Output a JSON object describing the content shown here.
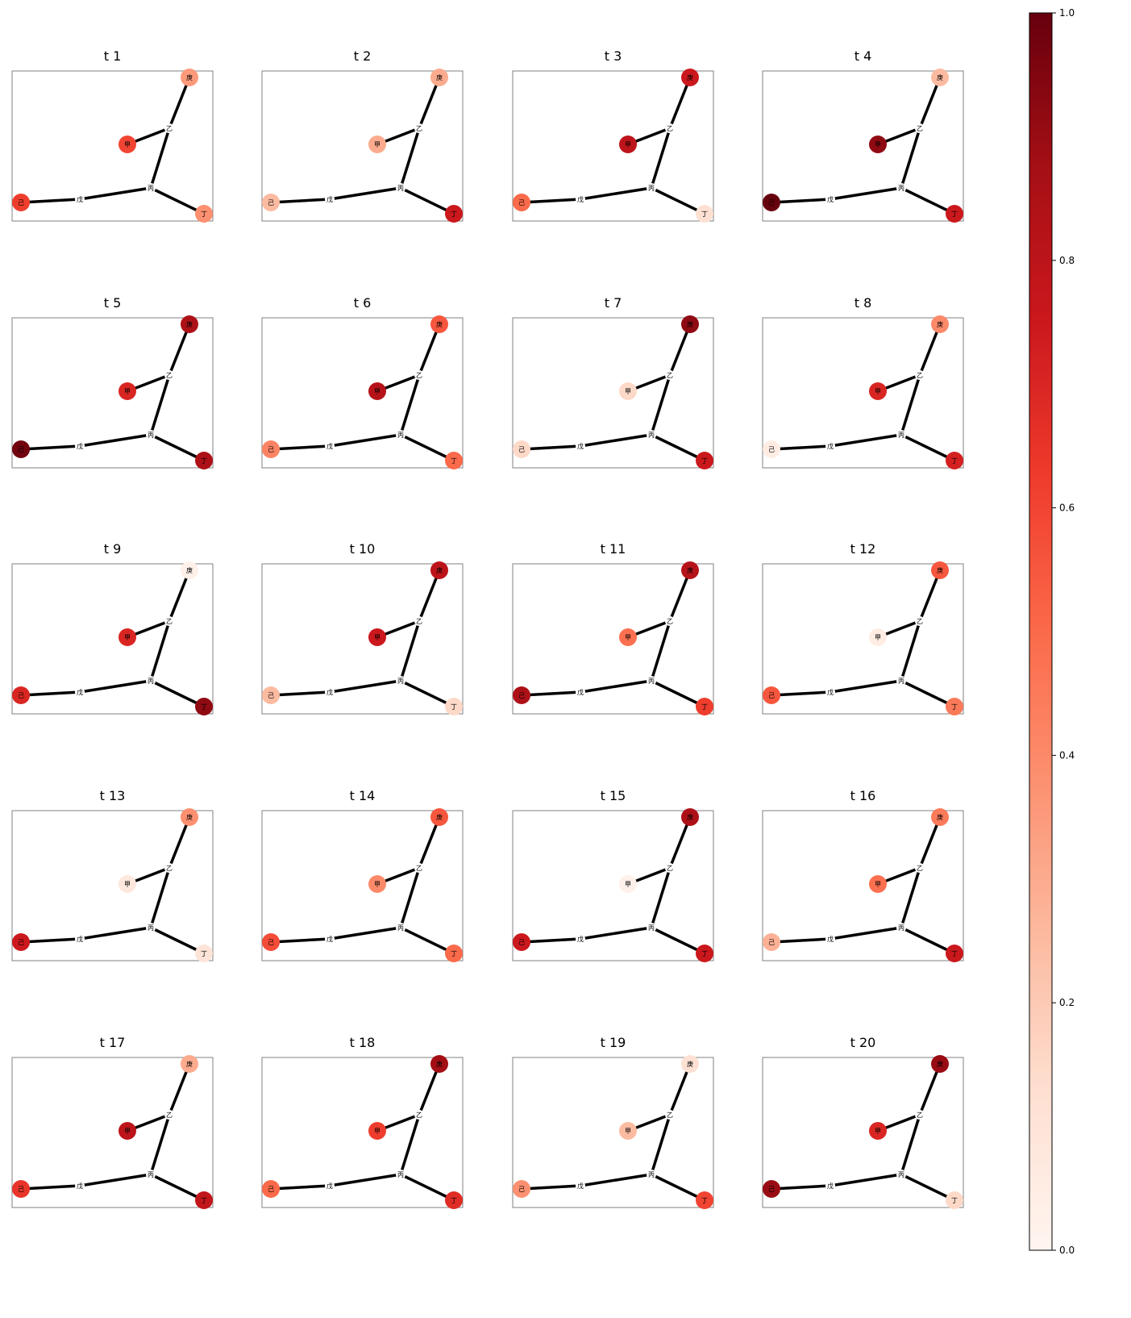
{
  "panel_titles": [
    "t 1",
    "t 2",
    "t 3",
    "t 4",
    "t 5",
    "t 6",
    "t 7",
    "t 8",
    "t 9",
    "t 10",
    "t 11",
    "t 12",
    "t 13",
    "t 14",
    "t 15",
    "t 16",
    "t 17",
    "t 18",
    "t 19",
    "t 20"
  ],
  "node_labels": {
    "jia": "甲",
    "yi": "乙",
    "bing": "丙",
    "ding": "丁",
    "wu": "戊",
    "ji": "己",
    "geng": "庚"
  },
  "edges": [
    [
      "jia",
      "yi"
    ],
    [
      "yi",
      "geng"
    ],
    [
      "yi",
      "bing"
    ],
    [
      "bing",
      "ding"
    ],
    [
      "bing",
      "wu"
    ],
    [
      "wu",
      "ji"
    ]
  ],
  "unweighted_nodes": [
    "yi",
    "bing",
    "wu"
  ],
  "weighted_nodes": [
    "jia",
    "ji",
    "ding",
    "geng"
  ],
  "node_values": [
    {
      "jia": 0.6,
      "ji": 0.62,
      "ding": 0.38,
      "geng": 0.35
    },
    {
      "jia": 0.3,
      "ji": 0.25,
      "ding": 0.75,
      "geng": 0.3
    },
    {
      "jia": 0.8,
      "ji": 0.5,
      "ding": 0.12,
      "geng": 0.75
    },
    {
      "jia": 0.92,
      "ji": 1.0,
      "ding": 0.75,
      "geng": 0.25
    },
    {
      "jia": 0.7,
      "ji": 0.98,
      "ding": 0.85,
      "geng": 0.85
    },
    {
      "jia": 0.82,
      "ji": 0.42,
      "ding": 0.5,
      "geng": 0.55
    },
    {
      "jia": 0.15,
      "ji": 0.15,
      "ding": 0.75,
      "geng": 0.92
    },
    {
      "jia": 0.7,
      "ji": 0.05,
      "ding": 0.72,
      "geng": 0.4
    },
    {
      "jia": 0.7,
      "ji": 0.7,
      "ding": 0.92,
      "geng": 0.03
    },
    {
      "jia": 0.75,
      "ji": 0.25,
      "ding": 0.15,
      "geng": 0.8
    },
    {
      "jia": 0.48,
      "ji": 0.85,
      "ding": 0.62,
      "geng": 0.82
    },
    {
      "jia": 0.05,
      "ji": 0.55,
      "ding": 0.45,
      "geng": 0.55
    },
    {
      "jia": 0.08,
      "ji": 0.75,
      "ding": 0.1,
      "geng": 0.38
    },
    {
      "jia": 0.4,
      "ji": 0.58,
      "ding": 0.5,
      "geng": 0.55
    },
    {
      "jia": 0.03,
      "ji": 0.75,
      "ding": 0.75,
      "geng": 0.85
    },
    {
      "jia": 0.48,
      "ji": 0.28,
      "ding": 0.75,
      "geng": 0.45
    },
    {
      "jia": 0.8,
      "ji": 0.65,
      "ding": 0.78,
      "geng": 0.3
    },
    {
      "jia": 0.62,
      "ji": 0.5,
      "ding": 0.68,
      "geng": 0.88
    },
    {
      "jia": 0.25,
      "ji": 0.38,
      "ding": 0.6,
      "geng": 0.12
    },
    {
      "jia": 0.7,
      "ji": 0.9,
      "ding": 0.15,
      "geng": 0.9
    }
  ],
  "colorbar": {
    "min": 0.0,
    "max": 1.0,
    "ticks": [
      "0.0",
      "0.2",
      "0.4",
      "0.6",
      "0.8",
      "1.0"
    ],
    "colormap": "Reds",
    "stops": [
      "#fff5f0",
      "#fee0d2",
      "#fcbba1",
      "#fc9272",
      "#fb6a4a",
      "#ef3b2c",
      "#cb181d",
      "#a50f15",
      "#67000d"
    ]
  },
  "colors": {
    "edge": "#000000",
    "frame": "#808080"
  }
}
